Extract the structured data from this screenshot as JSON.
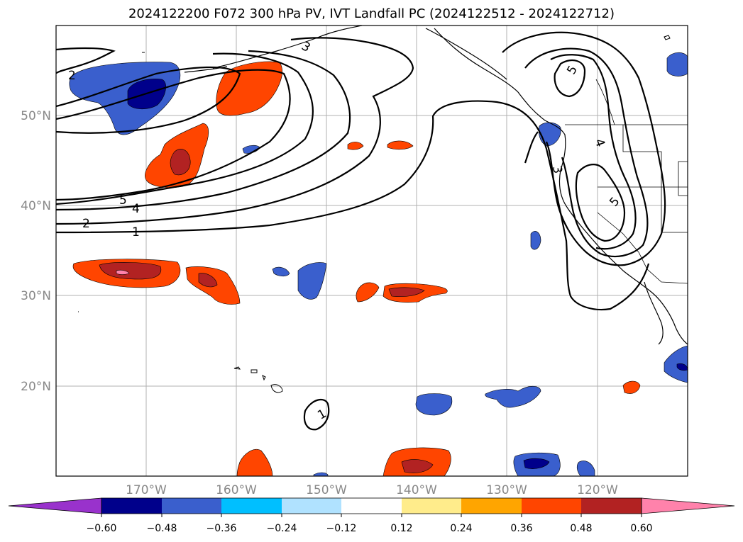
{
  "title": "2024122200 F072 300 hPa PV, IVT Landfall PC (2024122512 - 2024122712)",
  "lat_labels": [
    "50°N",
    "40°N",
    "30°N",
    "20°N"
  ],
  "lon_labels": [
    "170°W",
    "160°W",
    "150°W",
    "140°W",
    "130°W",
    "120°W"
  ],
  "contour_labels": [
    "5",
    "4",
    "2",
    "1",
    "5",
    "5",
    "4",
    "3",
    "1",
    "3",
    "2"
  ],
  "colorbar": {
    "ticks": [
      "−0.60",
      "−0.48",
      "−0.36",
      "−0.24",
      "−0.12",
      "0.12",
      "0.24",
      "0.36",
      "0.48",
      "0.60"
    ],
    "colors": [
      "#9932cc",
      "#00008b",
      "#3a5fcd",
      "#00bfff",
      "#b0e2ff",
      "#ffffff",
      "#ffec8b",
      "#ffa500",
      "#ff4500",
      "#b22222",
      "#ff82ab"
    ]
  }
}
